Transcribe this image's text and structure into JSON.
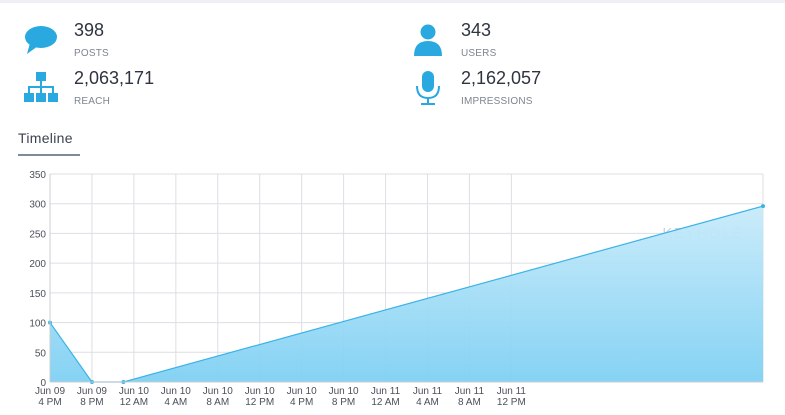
{
  "stats": {
    "posts": {
      "value": "398",
      "label": "POSTS",
      "icon": "chat-bubble-icon"
    },
    "users": {
      "value": "343",
      "label": "USERS",
      "icon": "user-icon"
    },
    "reach": {
      "value": "2,063,171",
      "label": "REACH",
      "icon": "network-tree-icon"
    },
    "impressions": {
      "value": "2,162,057",
      "label": "IMPRESSIONS",
      "icon": "microphone-icon"
    }
  },
  "section": {
    "title": "Timeline"
  },
  "watermark": "KEYHOLE",
  "colors": {
    "accent": "#29a9e0",
    "fill_top": "#c8ebfa",
    "fill_bottom": "#7fd0f3",
    "line": "#3bb3e6"
  },
  "chart_data": {
    "type": "area",
    "y_ticks": [
      "350",
      "300",
      "250",
      "200",
      "150",
      "100",
      "50",
      "0"
    ],
    "y_range": [
      0,
      350
    ],
    "x_ticks": [
      [
        "Jun 09",
        "4 PM"
      ],
      [
        "Jun 09",
        "8 PM"
      ],
      [
        "Jun 10",
        "12 AM"
      ],
      [
        "Jun 10",
        "4 AM"
      ],
      [
        "Jun 10",
        "8 AM"
      ],
      [
        "Jun 10",
        "12 PM"
      ],
      [
        "Jun 10",
        "4 PM"
      ],
      [
        "Jun 10",
        "8 PM"
      ],
      [
        "Jun 11",
        "12 AM"
      ],
      [
        "Jun 11",
        "4 AM"
      ],
      [
        "Jun 11",
        "8 AM"
      ],
      [
        "Jun 11",
        "12 PM"
      ]
    ],
    "series": [
      {
        "x": [
          0,
          4,
          7,
          68
        ],
        "y": [
          100,
          0,
          0,
          296
        ]
      }
    ],
    "grid": true
  }
}
